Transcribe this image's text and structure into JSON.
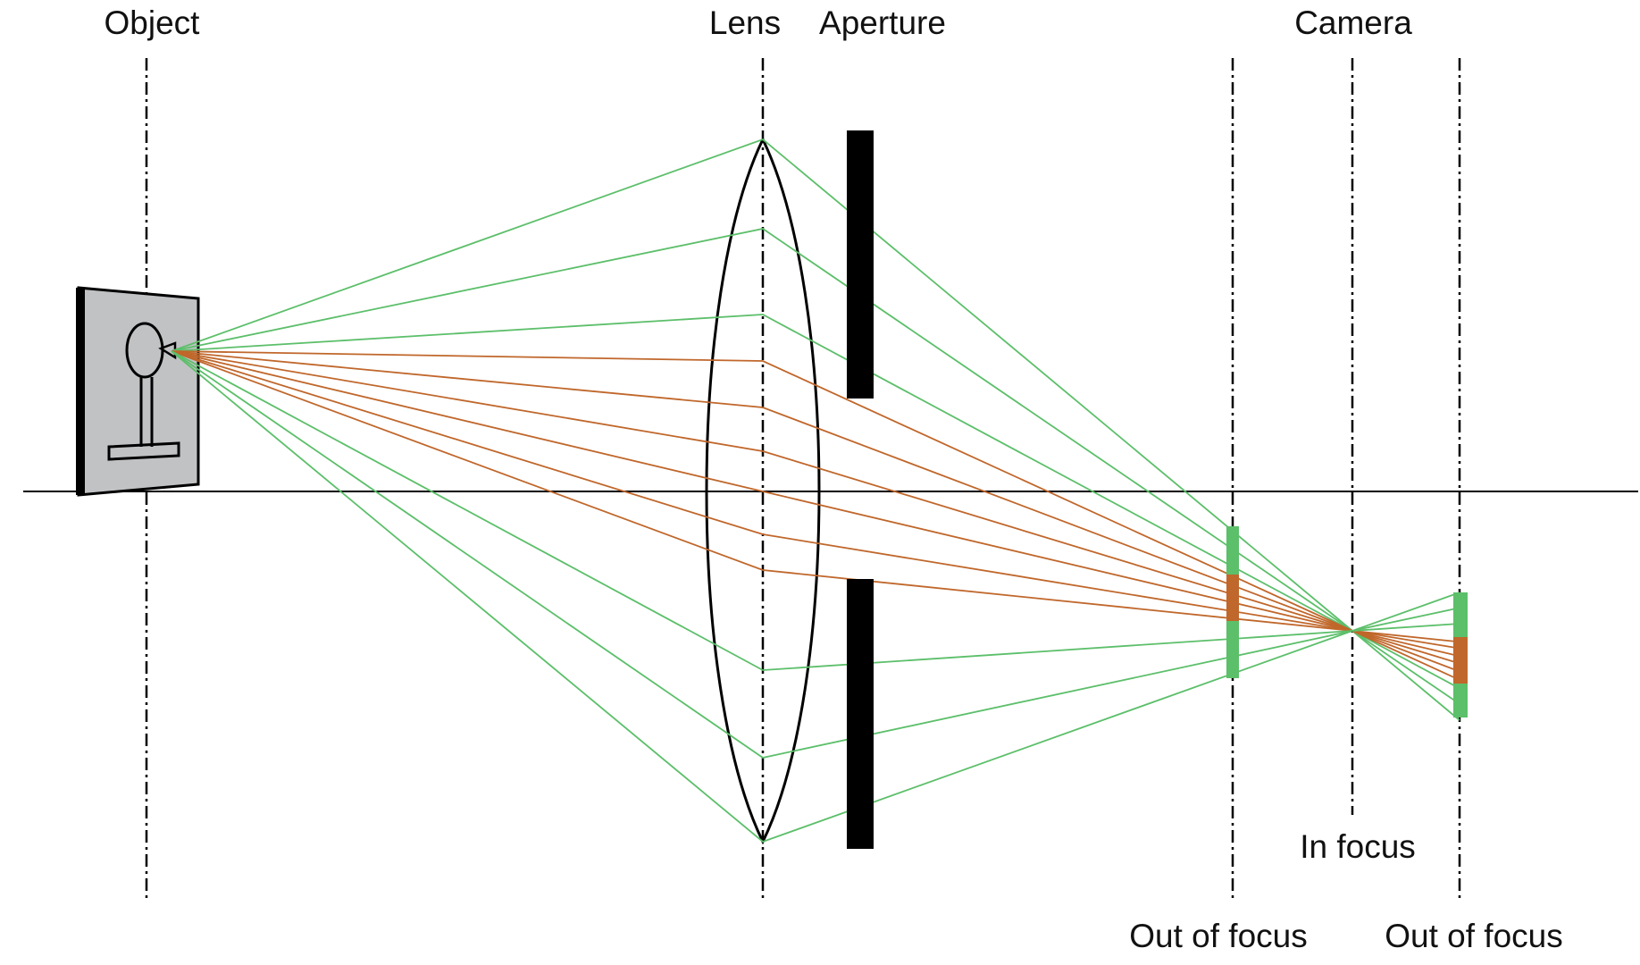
{
  "labels": {
    "object": "Object",
    "lens": "Lens",
    "aperture": "Aperture",
    "camera": "Camera",
    "in_focus": "In focus",
    "out_of_focus_near": "Out of focus",
    "out_of_focus_far": "Out of focus"
  },
  "colors": {
    "outer_rays": "#5cbf6a",
    "inner_rays": "#c0672b",
    "aperture_blades": "#000000",
    "object_panel": "#c0c2c4"
  },
  "icons": {
    "object": "lamp-icon"
  }
}
